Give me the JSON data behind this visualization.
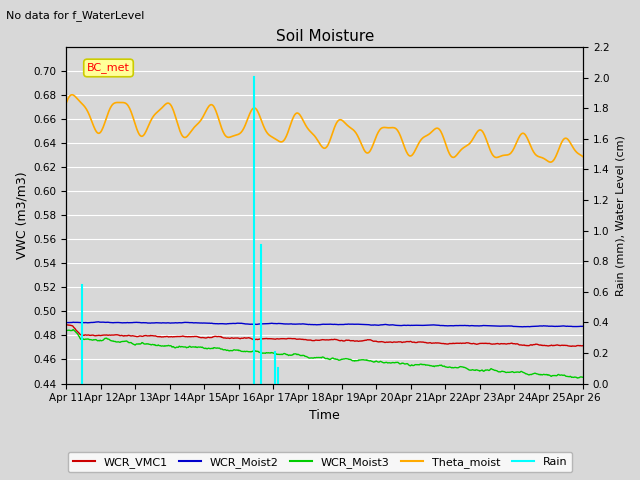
{
  "title": "Soil Moisture",
  "top_note": "No data for f_WaterLevel",
  "xlabel": "Time",
  "ylabel_left": "VWC (m3/m3)",
  "ylabel_right": "Rain (mm), Water Level (cm)",
  "ylim_left": [
    0.44,
    0.72
  ],
  "ylim_right": [
    0.0,
    2.2
  ],
  "yticks_left": [
    0.44,
    0.46,
    0.48,
    0.5,
    0.52,
    0.54,
    0.56,
    0.58,
    0.6,
    0.62,
    0.64,
    0.66,
    0.68,
    0.7
  ],
  "yticks_right": [
    0.0,
    0.2,
    0.4,
    0.6,
    0.8,
    1.0,
    1.2,
    1.4,
    1.6,
    1.8,
    2.0,
    2.2
  ],
  "x_tick_labels": [
    "Apr 11",
    "Apr 12",
    "Apr 13",
    "Apr 14",
    "Apr 15",
    "Apr 16",
    "Apr 17",
    "Apr 18",
    "Apr 19",
    "Apr 20",
    "Apr 21",
    "Apr 22",
    "Apr 23",
    "Apr 24",
    "Apr 25",
    "Apr 26"
  ],
  "background_color": "#d8d8d8",
  "plot_bg_color": "#d8d8d8",
  "legend_box_color": "#ffff99",
  "legend_box_edge": "#cccc00",
  "grid_color": "white",
  "series": {
    "WCR_VMC1": {
      "color": "#cc0000",
      "lw": 1.0
    },
    "WCR_Moist2": {
      "color": "#0000cc",
      "lw": 1.0
    },
    "WCR_Moist3": {
      "color": "#00cc00",
      "lw": 1.0
    },
    "Theta_moist": {
      "color": "#ffaa00",
      "lw": 1.2
    },
    "Rain": {
      "color": "cyan",
      "lw": 1.5
    }
  }
}
